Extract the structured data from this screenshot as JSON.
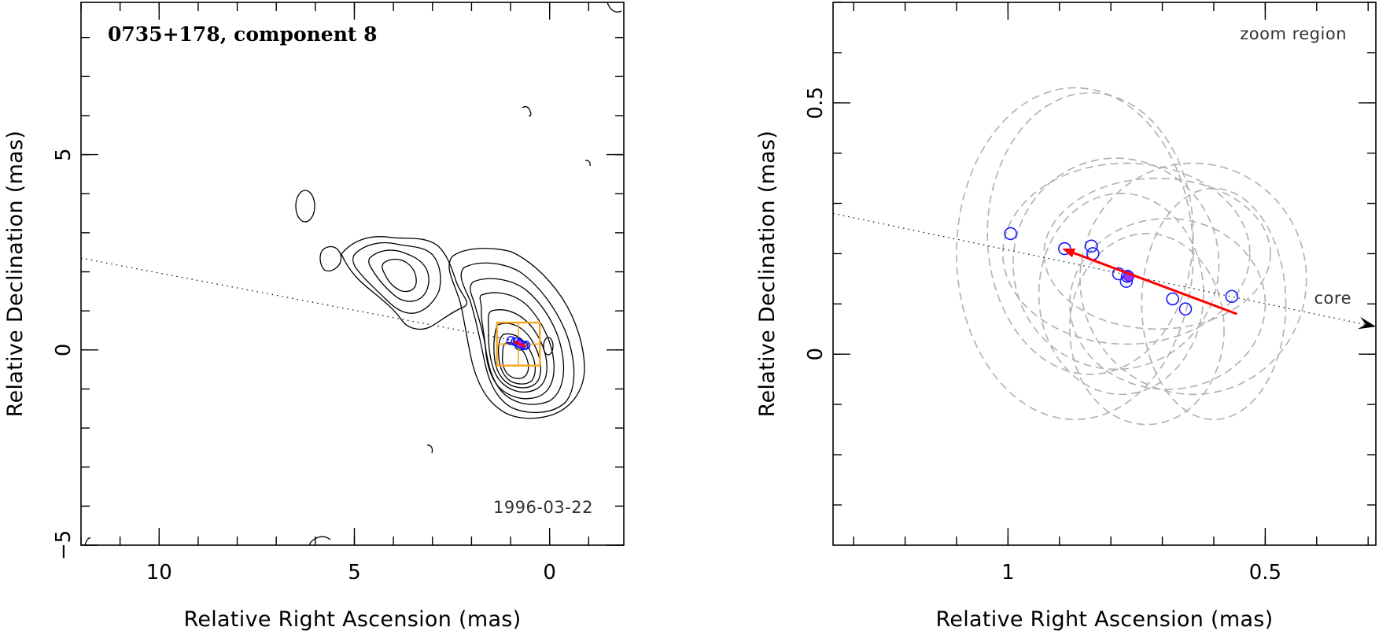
{
  "chart_data": [
    {
      "type": "contour",
      "title": "0735+178, component 8",
      "date_label": "1996-03-22",
      "xlabel": "Relative Right Ascension (mas)",
      "ylabel": "Relative Declination (mas)",
      "xlim": [
        12.0,
        -1.9
      ],
      "ylim": [
        -5.0,
        8.9
      ],
      "xticks": [
        10,
        5,
        0
      ],
      "yticks": [
        -5,
        0,
        5
      ],
      "jet_direction_line": {
        "from": [
          12.0,
          2.35
        ],
        "to": [
          0.45,
          0.15
        ]
      },
      "zoom_box": {
        "x": [
          1.35,
          0.25
        ],
        "y": [
          -0.4,
          0.7
        ]
      },
      "component_positions": [
        [
          0.99,
          0.24
        ],
        [
          0.88,
          0.21
        ],
        [
          0.83,
          0.21
        ],
        [
          0.77,
          0.16
        ],
        [
          0.76,
          0.15
        ],
        [
          0.66,
          0.11
        ],
        [
          0.61,
          0.12
        ]
      ],
      "component_mean": [
        0.77,
        0.155
      ],
      "motion_vector": {
        "from": [
          0.6,
          0.08
        ],
        "to": [
          0.92,
          0.22
        ]
      }
    },
    {
      "type": "scatter",
      "title": "zoom region",
      "core_label": "core",
      "xlabel": "Relative Right Ascension (mas)",
      "ylabel": "Relative Declination (mas)",
      "xlim": [
        1.34,
        0.285
      ],
      "ylim": [
        -0.38,
        0.7
      ],
      "xticks": [
        1,
        0.5
      ],
      "yticks": [
        0,
        0.5
      ],
      "points": [
        [
          0.995,
          0.24
        ],
        [
          0.89,
          0.21
        ],
        [
          0.838,
          0.215
        ],
        [
          0.835,
          0.2
        ],
        [
          0.785,
          0.16
        ],
        [
          0.77,
          0.145
        ],
        [
          0.768,
          0.155
        ],
        [
          0.68,
          0.11
        ],
        [
          0.655,
          0.09
        ],
        [
          0.565,
          0.115
        ]
      ],
      "mean_point": [
        0.765,
        0.155
      ],
      "motion_vector": {
        "from": [
          0.555,
          0.08
        ],
        "to": [
          0.895,
          0.21
        ]
      },
      "jet_direction_line": {
        "from": [
          1.34,
          0.28
        ],
        "to": [
          0.285,
          0.055
        ]
      },
      "position_error_ellipses": [
        {
          "cx": 0.87,
          "cy": 0.2,
          "rx": 0.23,
          "ry": 0.33
        },
        {
          "cx": 0.84,
          "cy": 0.24,
          "rx": 0.2,
          "ry": 0.28
        },
        {
          "cx": 0.79,
          "cy": 0.18,
          "rx": 0.2,
          "ry": 0.21
        },
        {
          "cx": 0.77,
          "cy": 0.2,
          "rx": 0.24,
          "ry": 0.18
        },
        {
          "cx": 0.78,
          "cy": 0.12,
          "rx": 0.16,
          "ry": 0.2
        },
        {
          "cx": 0.71,
          "cy": 0.2,
          "rx": 0.22,
          "ry": 0.15
        },
        {
          "cx": 0.6,
          "cy": 0.1,
          "rx": 0.14,
          "ry": 0.23
        },
        {
          "cx": 0.64,
          "cy": 0.15,
          "rx": 0.22,
          "ry": 0.23
        },
        {
          "cx": 0.73,
          "cy": 0.05,
          "rx": 0.15,
          "ry": 0.19
        },
        {
          "cx": 0.69,
          "cy": 0.1,
          "rx": 0.19,
          "ry": 0.17
        }
      ]
    }
  ]
}
